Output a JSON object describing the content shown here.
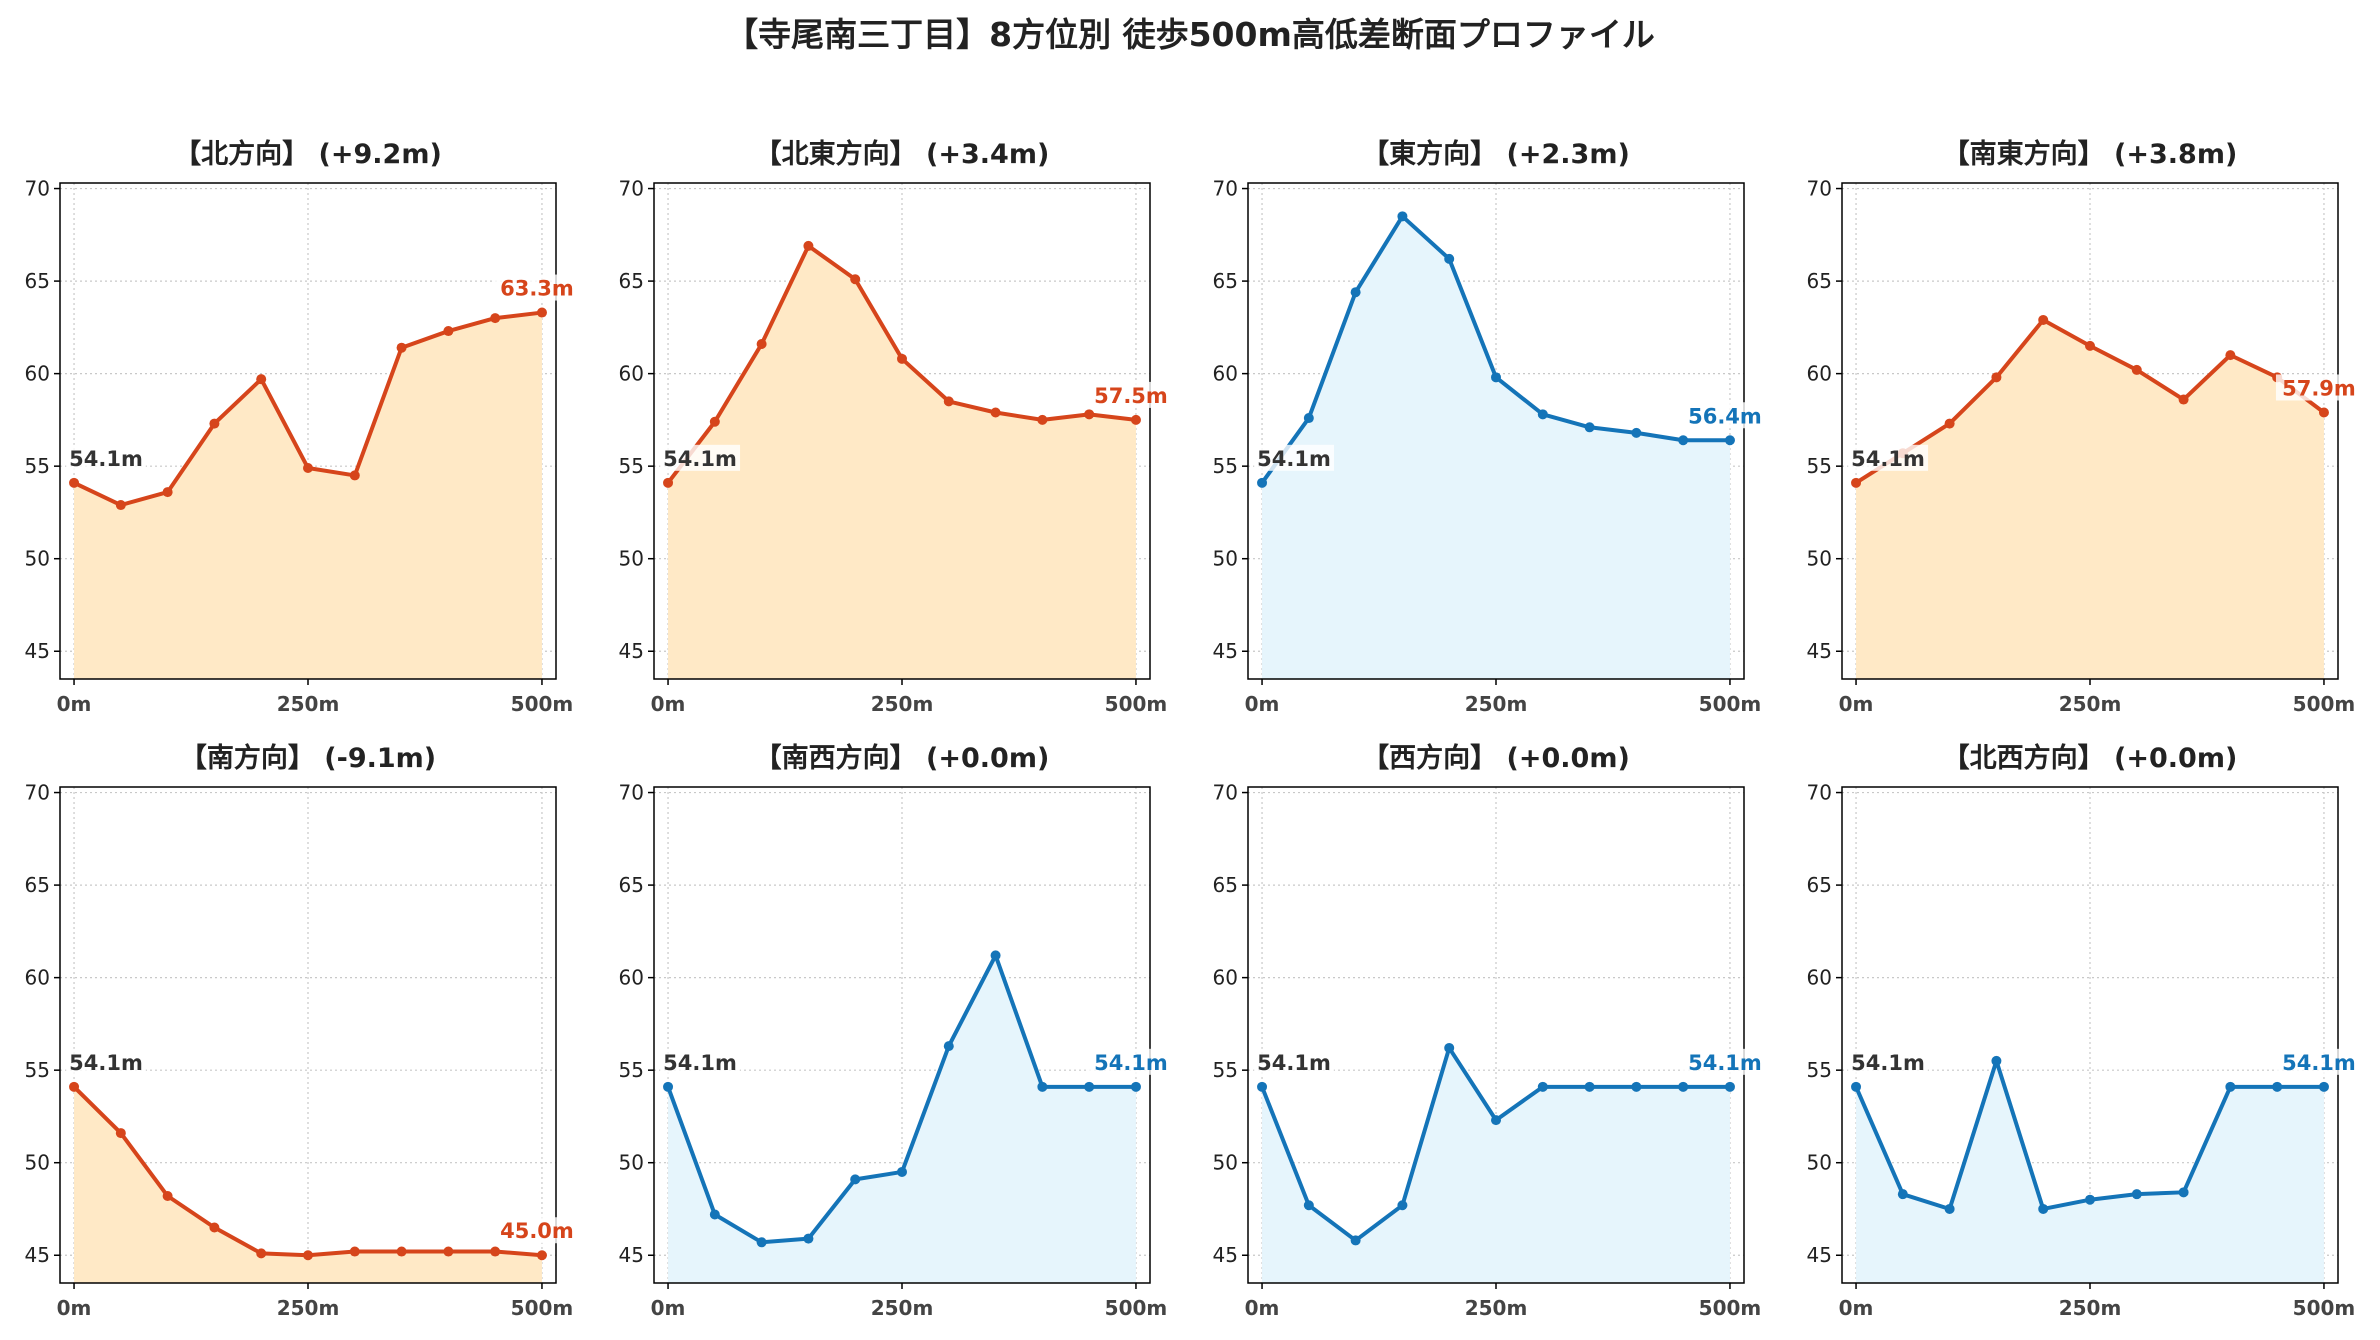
{
  "title": "【寺尾南三丁目】8方位別 徒歩500m高低差断面プロファイル",
  "chart_data": [
    {
      "type": "area",
      "title": "【北方向】 (+9.2m)",
      "x": [
        0,
        50,
        100,
        150,
        200,
        250,
        300,
        350,
        400,
        450,
        500
      ],
      "y": [
        54.1,
        52.9,
        53.6,
        57.3,
        59.7,
        54.9,
        54.5,
        61.4,
        62.3,
        63.0,
        63.3
      ],
      "start_label": "54.1m",
      "end_label": "63.3m",
      "ylim": [
        43.5,
        70.3
      ],
      "yticks": [
        45,
        50,
        55,
        60,
        65,
        70
      ],
      "xticks": [
        0,
        250,
        500
      ],
      "xtick_labels": [
        "0m",
        "250m",
        "500m"
      ],
      "line_color": "#d6451b",
      "fill_color": "#ffe9c6",
      "grid": true
    },
    {
      "type": "area",
      "title": "【北東方向】 (+3.4m)",
      "x": [
        0,
        50,
        100,
        150,
        200,
        250,
        300,
        350,
        400,
        450,
        500
      ],
      "y": [
        54.1,
        57.4,
        61.6,
        66.9,
        65.1,
        60.8,
        58.5,
        57.9,
        57.5,
        57.8,
        57.5
      ],
      "start_label": "54.1m",
      "end_label": "57.5m",
      "ylim": [
        43.5,
        70.3
      ],
      "yticks": [
        45,
        50,
        55,
        60,
        65,
        70
      ],
      "xticks": [
        0,
        250,
        500
      ],
      "xtick_labels": [
        "0m",
        "250m",
        "500m"
      ],
      "line_color": "#d6451b",
      "fill_color": "#ffe9c6",
      "grid": true
    },
    {
      "type": "area",
      "title": "【東方向】 (+2.3m)",
      "x": [
        0,
        50,
        100,
        150,
        200,
        250,
        300,
        350,
        400,
        450,
        500
      ],
      "y": [
        54.1,
        57.6,
        64.4,
        68.5,
        66.2,
        59.8,
        57.8,
        57.1,
        56.8,
        56.4,
        56.4
      ],
      "start_label": "54.1m",
      "end_label": "56.4m",
      "ylim": [
        43.5,
        70.3
      ],
      "yticks": [
        45,
        50,
        55,
        60,
        65,
        70
      ],
      "xticks": [
        0,
        250,
        500
      ],
      "xtick_labels": [
        "0m",
        "250m",
        "500m"
      ],
      "line_color": "#1474b8",
      "fill_color": "#e6f5fc",
      "grid": true
    },
    {
      "type": "area",
      "title": "【南東方向】 (+3.8m)",
      "x": [
        0,
        50,
        100,
        150,
        200,
        250,
        300,
        350,
        400,
        450,
        500
      ],
      "y": [
        54.1,
        55.7,
        57.3,
        59.8,
        62.9,
        61.5,
        60.2,
        58.6,
        61.0,
        59.8,
        57.9
      ],
      "start_label": "54.1m",
      "end_label": "57.9m",
      "ylim": [
        43.5,
        70.3
      ],
      "yticks": [
        45,
        50,
        55,
        60,
        65,
        70
      ],
      "xticks": [
        0,
        250,
        500
      ],
      "xtick_labels": [
        "0m",
        "250m",
        "500m"
      ],
      "line_color": "#d6451b",
      "fill_color": "#ffe9c6",
      "grid": true
    },
    {
      "type": "area",
      "title": "【南方向】 (-9.1m)",
      "x": [
        0,
        50,
        100,
        150,
        200,
        250,
        300,
        350,
        400,
        450,
        500
      ],
      "y": [
        54.1,
        51.6,
        48.2,
        46.5,
        45.1,
        45.0,
        45.2,
        45.2,
        45.2,
        45.2,
        45.0
      ],
      "start_label": "54.1m",
      "end_label": "45.0m",
      "ylim": [
        43.5,
        70.3
      ],
      "yticks": [
        45,
        50,
        55,
        60,
        65,
        70
      ],
      "xticks": [
        0,
        250,
        500
      ],
      "xtick_labels": [
        "0m",
        "250m",
        "500m"
      ],
      "line_color": "#d6451b",
      "fill_color": "#ffe9c6",
      "grid": true
    },
    {
      "type": "area",
      "title": "【南西方向】 (+0.0m)",
      "x": [
        0,
        50,
        100,
        150,
        200,
        250,
        300,
        350,
        400,
        450,
        500
      ],
      "y": [
        54.1,
        47.2,
        45.7,
        45.9,
        49.1,
        49.5,
        56.3,
        61.2,
        54.1,
        54.1,
        54.1
      ],
      "start_label": "54.1m",
      "end_label": "54.1m",
      "ylim": [
        43.5,
        70.3
      ],
      "yticks": [
        45,
        50,
        55,
        60,
        65,
        70
      ],
      "xticks": [
        0,
        250,
        500
      ],
      "xtick_labels": [
        "0m",
        "250m",
        "500m"
      ],
      "line_color": "#1474b8",
      "fill_color": "#e6f5fc",
      "grid": true
    },
    {
      "type": "area",
      "title": "【西方向】 (+0.0m)",
      "x": [
        0,
        50,
        100,
        150,
        200,
        250,
        300,
        350,
        400,
        450,
        500
      ],
      "y": [
        54.1,
        47.7,
        45.8,
        47.7,
        56.2,
        52.3,
        54.1,
        54.1,
        54.1,
        54.1,
        54.1
      ],
      "start_label": "54.1m",
      "end_label": "54.1m",
      "ylim": [
        43.5,
        70.3
      ],
      "yticks": [
        45,
        50,
        55,
        60,
        65,
        70
      ],
      "xticks": [
        0,
        250,
        500
      ],
      "xtick_labels": [
        "0m",
        "250m",
        "500m"
      ],
      "line_color": "#1474b8",
      "fill_color": "#e6f5fc",
      "grid": true
    },
    {
      "type": "area",
      "title": "【北西方向】 (+0.0m)",
      "x": [
        0,
        50,
        100,
        150,
        200,
        250,
        300,
        350,
        400,
        450,
        500
      ],
      "y": [
        54.1,
        48.3,
        47.5,
        55.5,
        47.5,
        48.0,
        48.3,
        48.4,
        54.1,
        54.1,
        54.1
      ],
      "start_label": "54.1m",
      "end_label": "54.1m",
      "ylim": [
        43.5,
        70.3
      ],
      "yticks": [
        45,
        50,
        55,
        60,
        65,
        70
      ],
      "xticks": [
        0,
        250,
        500
      ],
      "xtick_labels": [
        "0m",
        "250m",
        "500m"
      ],
      "line_color": "#1474b8",
      "fill_color": "#e6f5fc",
      "grid": true
    }
  ]
}
